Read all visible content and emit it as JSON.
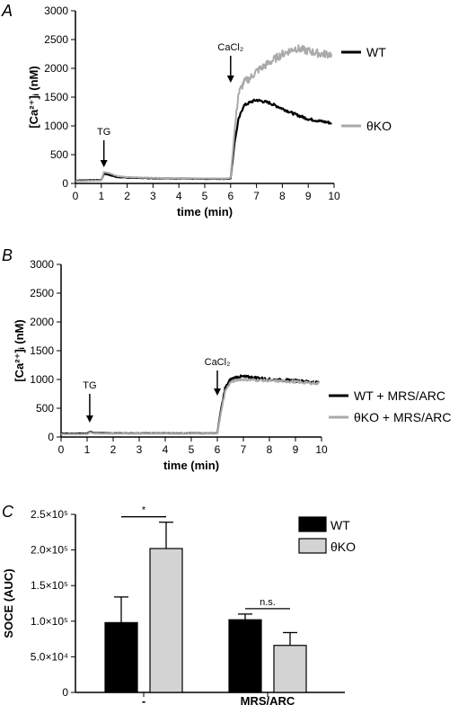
{
  "chart_data": [
    {
      "panel": "A",
      "type": "line",
      "xlabel": "time (min)",
      "ylabel": "[Ca²⁺]ᵢ (nM)",
      "xlim": [
        0,
        10
      ],
      "ylim": [
        0,
        3000
      ],
      "xticks": [
        "0",
        "1",
        "2",
        "3",
        "4",
        "5",
        "6",
        "7",
        "8",
        "9",
        "10"
      ],
      "yticks": [
        "0",
        "500",
        "1000",
        "1500",
        "2000",
        "2500",
        "3000"
      ],
      "annotations": [
        {
          "label": "TG",
          "x": 1.1
        },
        {
          "label": "CaCl₂",
          "x": 6.0
        }
      ],
      "legend_placement": "right",
      "series": [
        {
          "name": "WT",
          "color": "#000000",
          "x": [
            0,
            0.5,
            1.0,
            1.1,
            1.3,
            1.6,
            2,
            3,
            4,
            5,
            5.9,
            6.0,
            6.15,
            6.3,
            6.5,
            6.8,
            7.0,
            7.5,
            8.0,
            8.5,
            9.0,
            9.5,
            9.9
          ],
          "y": [
            50,
            55,
            60,
            170,
            150,
            110,
            100,
            90,
            85,
            80,
            80,
            90,
            700,
            1100,
            1350,
            1420,
            1450,
            1400,
            1300,
            1200,
            1120,
            1080,
            1050
          ]
        },
        {
          "name": "θKO",
          "color": "#aaaaaa",
          "x": [
            0,
            0.5,
            1.0,
            1.1,
            1.3,
            1.6,
            2,
            3,
            4,
            5,
            5.9,
            6.0,
            6.15,
            6.3,
            6.5,
            6.8,
            7.0,
            7.5,
            8.0,
            8.5,
            9.0,
            9.5,
            9.9
          ],
          "y": [
            40,
            45,
            50,
            200,
            180,
            130,
            110,
            95,
            90,
            85,
            85,
            100,
            900,
            1550,
            1750,
            1850,
            1950,
            2100,
            2250,
            2350,
            2300,
            2250,
            2250
          ]
        }
      ]
    },
    {
      "panel": "B",
      "type": "line",
      "xlabel": "time (min)",
      "ylabel": "[Ca²⁺]ᵢ (nM)",
      "xlim": [
        0,
        10
      ],
      "ylim": [
        0,
        3000
      ],
      "xticks": [
        "0",
        "1",
        "2",
        "3",
        "4",
        "5",
        "6",
        "7",
        "8",
        "9",
        "10"
      ],
      "yticks": [
        "0",
        "500",
        "1000",
        "1500",
        "2000",
        "2500",
        "3000"
      ],
      "annotations": [
        {
          "label": "TG",
          "x": 1.1
        },
        {
          "label": "CaCl₂",
          "x": 6.0
        }
      ],
      "legend_placement": "right",
      "series": [
        {
          "name": "WT + MRS/ARC",
          "color": "#000000",
          "x": [
            0,
            0.5,
            1.0,
            1.1,
            1.3,
            2,
            3,
            4,
            5,
            5.9,
            6.0,
            6.15,
            6.3,
            6.5,
            6.8,
            7.0,
            7.5,
            8.0,
            8.5,
            9.0,
            9.5,
            9.9
          ],
          "y": [
            60,
            60,
            60,
            90,
            70,
            65,
            65,
            65,
            65,
            65,
            70,
            500,
            850,
            1000,
            1050,
            1050,
            1030,
            1000,
            990,
            980,
            960,
            950
          ]
        },
        {
          "name": "θKO + MRS/ARC",
          "color": "#aaaaaa",
          "x": [
            0,
            0.5,
            1.0,
            1.1,
            1.3,
            2,
            3,
            4,
            5,
            5.9,
            6.0,
            6.15,
            6.3,
            6.5,
            6.8,
            7.0,
            7.5,
            8.0,
            8.5,
            9.0,
            9.5,
            9.9
          ],
          "y": [
            50,
            50,
            50,
            80,
            60,
            60,
            60,
            60,
            60,
            60,
            65,
            450,
            800,
            950,
            1000,
            1000,
            990,
            980,
            970,
            960,
            940,
            930
          ]
        }
      ]
    },
    {
      "panel": "C",
      "type": "bar",
      "ylabel": "SOCE (AUC)",
      "ylim": [
        0,
        250000
      ],
      "yticks": [
        "0",
        "5.0×10⁴",
        "1.0×10⁵",
        "1.5×10⁵",
        "2.0×10⁵",
        "2.5×10⁵"
      ],
      "categories": [
        "-",
        "MRS/ARC"
      ],
      "legend_placement": "top-right",
      "series": [
        {
          "name": "WT",
          "color": "#000000",
          "values": [
            98000,
            102000
          ],
          "errors": [
            36000,
            8000
          ]
        },
        {
          "name": "θKO",
          "color": "#d3d3d3",
          "values": [
            202000,
            66000
          ],
          "errors": [
            37000,
            18000
          ]
        }
      ],
      "significance": [
        "*",
        "n.s."
      ]
    }
  ]
}
